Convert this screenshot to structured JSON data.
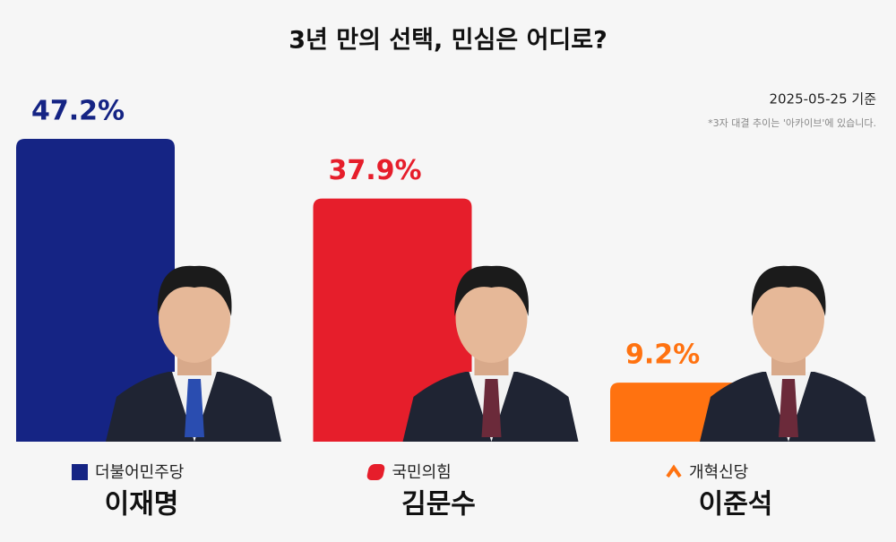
{
  "chart_data": {
    "type": "bar",
    "title": "3년 만의 선택, 민심은 어디로?",
    "subtitle": "2025-05-25 기준",
    "note": "*3자 대결 추이는 '아카이브'에 있습니다.",
    "categories": [
      "이재명",
      "김문수",
      "이준석"
    ],
    "parties": [
      "더불어민주당",
      "국민의힘",
      "개혁신당"
    ],
    "values": [
      47.2,
      37.9,
      9.2
    ],
    "value_labels": [
      "47.2%",
      "37.9%",
      "9.2%"
    ],
    "colors": [
      "#152484",
      "#e61e2b",
      "#ff7210"
    ]
  }
}
